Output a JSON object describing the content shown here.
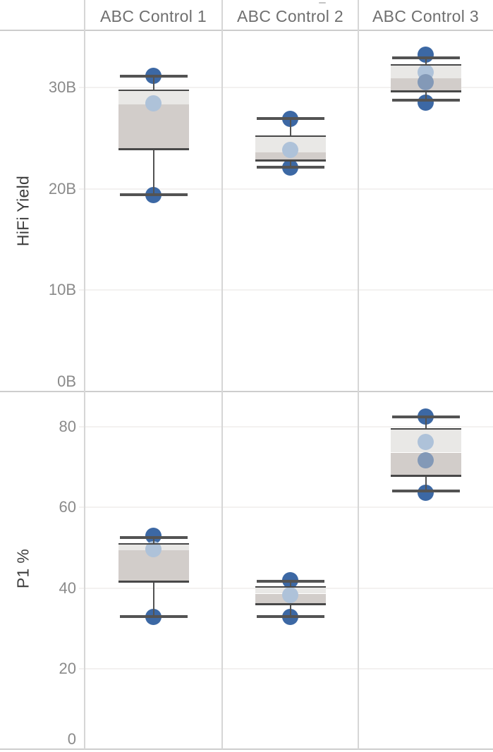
{
  "chart": {
    "row_labels": [
      "HiFi Yield",
      "P1 %"
    ],
    "column_headers": [
      "ABC Control 1",
      "ABC Control 2",
      "ABC Control 3"
    ]
  },
  "colors": {
    "dot_dark": "#3c68a4",
    "dot_light": "#aec2d9",
    "dot_medium": "#8399b7",
    "box_fill_upper": "#e9e8e6",
    "box_fill_lower": "#d2cdca",
    "box_border": "#484848",
    "whisker": "#535353",
    "gridline": "#f3f1f0",
    "frame_line": "#cdcdcd",
    "divider_line": "#d6d6d6",
    "header_text": "#6f6f6f",
    "tick_text": "#8a8a8a",
    "row_label_text": "#3d3d3d",
    "top_dash": "#c4c4c4"
  },
  "chart_data": [
    {
      "type": "boxplot",
      "panel": "HiFi Yield",
      "ylabel": "HiFi Yield",
      "unit": "B",
      "ylim": [
        0,
        35.6
      ],
      "grid": true,
      "ticks": [
        {
          "value": 0,
          "label": "0B"
        },
        {
          "value": 10,
          "label": "10B"
        },
        {
          "value": 20,
          "label": "20B"
        },
        {
          "value": 30,
          "label": "30B"
        }
      ],
      "categories": [
        "ABC Control 1",
        "ABC Control 2",
        "ABC Control 3"
      ],
      "series": [
        {
          "category": "ABC Control 1",
          "whisker_low": 19.4,
          "q1": 23.9,
          "median": 28.3,
          "q3": 29.7,
          "whisker_high": 31.1,
          "points": [
            {
              "value": 31.1,
              "shade": "dark"
            },
            {
              "value": 28.4,
              "shade": "light"
            },
            {
              "value": 19.4,
              "shade": "dark"
            }
          ]
        },
        {
          "category": "ABC Control 2",
          "whisker_low": 22.1,
          "q1": 22.8,
          "median": 23.6,
          "q3": 25.2,
          "whisker_high": 26.9,
          "points": [
            {
              "value": 26.9,
              "shade": "dark"
            },
            {
              "value": 23.8,
              "shade": "light"
            },
            {
              "value": 22.1,
              "shade": "dark"
            }
          ]
        },
        {
          "category": "ABC Control 3",
          "whisker_low": 28.7,
          "q1": 29.6,
          "median": 30.9,
          "q3": 32.2,
          "whisker_high": 32.9,
          "points": [
            {
              "value": 33.2,
              "shade": "dark"
            },
            {
              "value": 31.5,
              "shade": "light"
            },
            {
              "value": 30.5,
              "shade": "medium"
            },
            {
              "value": 28.5,
              "shade": "dark"
            }
          ]
        }
      ]
    },
    {
      "type": "boxplot",
      "panel": "P1 %",
      "ylabel": "P1 %",
      "unit": "%",
      "ylim": [
        0,
        88.7
      ],
      "grid": true,
      "ticks": [
        {
          "value": 0,
          "label": "0"
        },
        {
          "value": 20,
          "label": "20"
        },
        {
          "value": 40,
          "label": "40"
        },
        {
          "value": 60,
          "label": "60"
        },
        {
          "value": 80,
          "label": "80"
        }
      ],
      "categories": [
        "ABC Control 1",
        "ABC Control 2",
        "ABC Control 3"
      ],
      "series": [
        {
          "category": "ABC Control 1",
          "whisker_low": 33.0,
          "q1": 41.6,
          "median": 49.4,
          "q3": 51.0,
          "whisker_high": 52.6,
          "points": [
            {
              "value": 53.0,
              "shade": "dark"
            },
            {
              "value": 49.6,
              "shade": "light"
            },
            {
              "value": 32.9,
              "shade": "dark"
            }
          ]
        },
        {
          "category": "ABC Control 2",
          "whisker_low": 33.0,
          "q1": 36.0,
          "median": 38.6,
          "q3": 40.2,
          "whisker_high": 41.7,
          "points": [
            {
              "value": 42.0,
              "shade": "dark"
            },
            {
              "value": 38.2,
              "shade": "light"
            },
            {
              "value": 32.9,
              "shade": "dark"
            }
          ]
        },
        {
          "category": "ABC Control 3",
          "whisker_low": 64.0,
          "q1": 67.8,
          "median": 73.6,
          "q3": 79.5,
          "whisker_high": 82.4,
          "points": [
            {
              "value": 82.6,
              "shade": "dark"
            },
            {
              "value": 76.2,
              "shade": "light"
            },
            {
              "value": 71.7,
              "shade": "medium"
            },
            {
              "value": 63.7,
              "shade": "dark"
            }
          ]
        }
      ]
    }
  ]
}
